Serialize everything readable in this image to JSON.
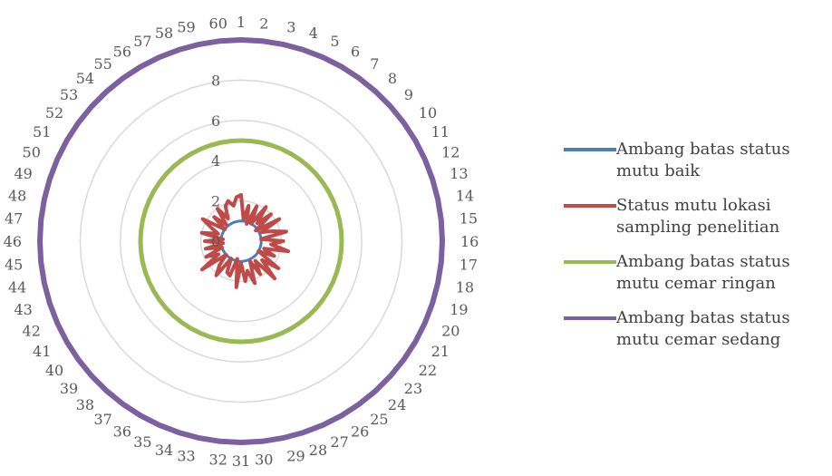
{
  "chart_data": {
    "type": "radar",
    "categories": [
      "1",
      "2",
      "3",
      "4",
      "5",
      "6",
      "7",
      "8",
      "9",
      "10",
      "11",
      "12",
      "13",
      "14",
      "15",
      "16",
      "17",
      "18",
      "19",
      "20",
      "21",
      "22",
      "23",
      "24",
      "25",
      "26",
      "27",
      "28",
      "29",
      "30",
      "31",
      "32",
      "33",
      "34",
      "35",
      "36",
      "37",
      "38",
      "39",
      "40",
      "41",
      "42",
      "43",
      "44",
      "45",
      "46",
      "47",
      "48",
      "49",
      "50",
      "51",
      "52",
      "53",
      "54",
      "55",
      "56",
      "57",
      "58",
      "59",
      "60"
    ],
    "rticks": [
      "0",
      "2",
      "4",
      "6",
      "8"
    ],
    "rlim": [
      0,
      10
    ],
    "grid": true,
    "legend_position": "right",
    "series": [
      {
        "name": "Ambang batas status mutu baik",
        "color": "#4a7ebb",
        "values": [
          1,
          1,
          1,
          1,
          1,
          1,
          1,
          1,
          1,
          1,
          1,
          1,
          1,
          1,
          1,
          1,
          1,
          1,
          1,
          1,
          1,
          1,
          1,
          1,
          1,
          1,
          1,
          1,
          1,
          1,
          1,
          1,
          1,
          1,
          1,
          1,
          1,
          1,
          1,
          1,
          1,
          1,
          1,
          1,
          1,
          1,
          1,
          1,
          1,
          1,
          1,
          1,
          1,
          1,
          1,
          1,
          1,
          1,
          1,
          1
        ]
      },
      {
        "name": "Status mutu lokasi sampling penelitian",
        "color": "#be4b48",
        "values": [
          2.3,
          1.1,
          1.8,
          0.9,
          1.9,
          1.0,
          2.1,
          1.2,
          2.0,
          0.9,
          2.2,
          1.1,
          1.6,
          2.3,
          1.0,
          2.1,
          1.5,
          2.4,
          1.2,
          1.8,
          1.0,
          2.3,
          1.4,
          2.5,
          1.2,
          1.9,
          1.1,
          2.2,
          1.5,
          2.0,
          1.1,
          2.3,
          0.9,
          1.8,
          1.7,
          1.0,
          2.1,
          1.6,
          1.0,
          2.4,
          1.3,
          1.9,
          1.0,
          1.8,
          0.9,
          1.8,
          0.9,
          2.0,
          1.2,
          1.6,
          2.2,
          1.0,
          1.8,
          1.1,
          2.0,
          1.3,
          1.9,
          2.1,
          1.8,
          2.2
        ]
      },
      {
        "name": "Ambang batas status mutu cemar ringan",
        "color": "#98b954",
        "values": [
          5,
          5,
          5,
          5,
          5,
          5,
          5,
          5,
          5,
          5,
          5,
          5,
          5,
          5,
          5,
          5,
          5,
          5,
          5,
          5,
          5,
          5,
          5,
          5,
          5,
          5,
          5,
          5,
          5,
          5,
          5,
          5,
          5,
          5,
          5,
          5,
          5,
          5,
          5,
          5,
          5,
          5,
          5,
          5,
          5,
          5,
          5,
          5,
          5,
          5,
          5,
          5,
          5,
          5,
          5,
          5,
          5,
          5,
          5,
          5
        ]
      },
      {
        "name": "Ambang batas status mutu cemar sedang",
        "color": "#7d60a0",
        "values": [
          10,
          10,
          10,
          10,
          10,
          10,
          10,
          10,
          10,
          10,
          10,
          10,
          10,
          10,
          10,
          10,
          10,
          10,
          10,
          10,
          10,
          10,
          10,
          10,
          10,
          10,
          10,
          10,
          10,
          10,
          10,
          10,
          10,
          10,
          10,
          10,
          10,
          10,
          10,
          10,
          10,
          10,
          10,
          10,
          10,
          10,
          10,
          10,
          10,
          10,
          10,
          10,
          10,
          10,
          10,
          10,
          10,
          10,
          10,
          10
        ]
      }
    ]
  },
  "legend": [
    {
      "text": "Ambang batas status mutu baik"
    },
    {
      "text": "Status mutu lokasi sampling penelitian"
    },
    {
      "text": "Ambang batas status mutu cemar ringan"
    },
    {
      "text": "Ambang batas status mutu cemar sedang"
    }
  ]
}
